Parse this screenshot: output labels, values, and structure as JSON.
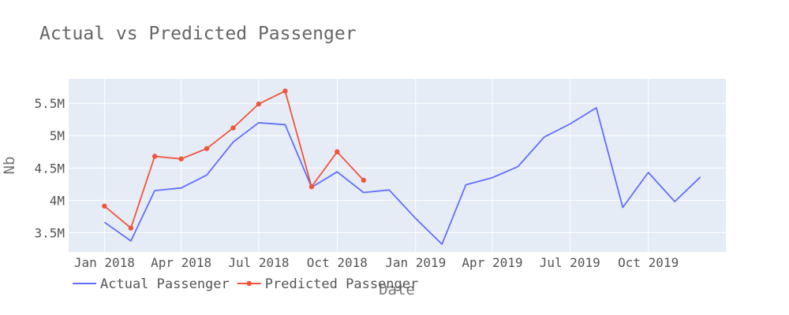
{
  "chart_data": {
    "type": "line",
    "title": "Actual vs Predicted Passenger",
    "xlabel": "Date",
    "ylabel": "Nb",
    "x_ticks": [
      {
        "date": "2018-01-01",
        "label": "Jan 2018"
      },
      {
        "date": "2018-04-01",
        "label": "Apr 2018"
      },
      {
        "date": "2018-07-01",
        "label": "Jul 2018"
      },
      {
        "date": "2018-10-01",
        "label": "Oct 2018"
      },
      {
        "date": "2019-01-01",
        "label": "Jan 2019"
      },
      {
        "date": "2019-04-01",
        "label": "Apr 2019"
      },
      {
        "date": "2019-07-01",
        "label": "Jul 2019"
      },
      {
        "date": "2019-10-01",
        "label": "Oct 2019"
      }
    ],
    "y_ticks": [
      {
        "value": 3500000,
        "label": "3.5M"
      },
      {
        "value": 4000000,
        "label": "4M"
      },
      {
        "value": 4500000,
        "label": "4.5M"
      },
      {
        "value": 5000000,
        "label": "5M"
      },
      {
        "value": 5500000,
        "label": "5.5M"
      }
    ],
    "xlim": [
      "2017-11-20",
      "2019-12-31"
    ],
    "ylim": [
      3200000,
      5880000
    ],
    "grid": true,
    "legend": "bottom-left, horizontal",
    "series": [
      {
        "name": "Actual Passenger",
        "color": "#636efa",
        "mode": "lines",
        "points": [
          {
            "x": "2018-01-01",
            "y": 3660000
          },
          {
            "x": "2018-02-01",
            "y": 3370000
          },
          {
            "x": "2018-03-01",
            "y": 4150000
          },
          {
            "x": "2018-04-01",
            "y": 4190000
          },
          {
            "x": "2018-05-01",
            "y": 4390000
          },
          {
            "x": "2018-06-01",
            "y": 4900000
          },
          {
            "x": "2018-07-01",
            "y": 5200000
          },
          {
            "x": "2018-08-01",
            "y": 5170000
          },
          {
            "x": "2018-09-01",
            "y": 4200000
          },
          {
            "x": "2018-10-01",
            "y": 4440000
          },
          {
            "x": "2018-11-01",
            "y": 4120000
          },
          {
            "x": "2018-12-01",
            "y": 4160000
          },
          {
            "x": "2019-01-01",
            "y": 3720000
          },
          {
            "x": "2019-02-01",
            "y": 3320000
          },
          {
            "x": "2019-03-01",
            "y": 4240000
          },
          {
            "x": "2019-04-01",
            "y": 4350000
          },
          {
            "x": "2019-05-01",
            "y": 4520000
          },
          {
            "x": "2019-06-01",
            "y": 4980000
          },
          {
            "x": "2019-07-01",
            "y": 5180000
          },
          {
            "x": "2019-08-01",
            "y": 5430000
          },
          {
            "x": "2019-09-01",
            "y": 3890000
          },
          {
            "x": "2019-10-01",
            "y": 4430000
          },
          {
            "x": "2019-11-01",
            "y": 3980000
          },
          {
            "x": "2019-12-01",
            "y": 4360000
          }
        ]
      },
      {
        "name": "Predicted Passenger",
        "color": "#ef553b",
        "mode": "lines+markers",
        "points": [
          {
            "x": "2018-01-01",
            "y": 3910000
          },
          {
            "x": "2018-02-01",
            "y": 3570000
          },
          {
            "x": "2018-03-01",
            "y": 4680000
          },
          {
            "x": "2018-04-01",
            "y": 4640000
          },
          {
            "x": "2018-05-01",
            "y": 4800000
          },
          {
            "x": "2018-06-01",
            "y": 5120000
          },
          {
            "x": "2018-07-01",
            "y": 5490000
          },
          {
            "x": "2018-08-01",
            "y": 5690000
          },
          {
            "x": "2018-09-01",
            "y": 4210000
          },
          {
            "x": "2018-10-01",
            "y": 4750000
          },
          {
            "x": "2018-11-01",
            "y": 4310000
          }
        ]
      }
    ]
  }
}
